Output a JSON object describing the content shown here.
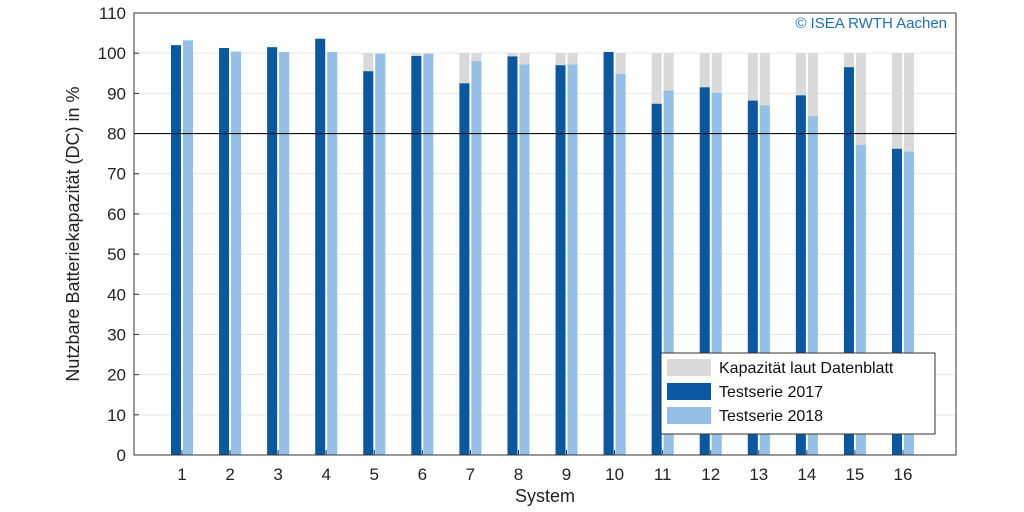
{
  "chart_data": {
    "type": "bar",
    "xlabel": "System",
    "ylabel": "Nutzbare Batteriekapazität (DC) in %",
    "ylim": [
      0,
      110
    ],
    "yticks": [
      0,
      10,
      20,
      30,
      40,
      50,
      60,
      70,
      80,
      90,
      100,
      110
    ],
    "categories": [
      "1",
      "2",
      "3",
      "4",
      "5",
      "6",
      "7",
      "8",
      "9",
      "10",
      "11",
      "12",
      "13",
      "14",
      "15",
      "16"
    ],
    "reference_line": 80,
    "grid": true,
    "legend_position": "bottom-right",
    "series": [
      {
        "name": "Kapazität laut Datenblatt",
        "color": "#d9d9d9",
        "values": [
          100,
          100,
          100,
          100,
          100,
          100,
          100,
          100,
          100,
          100,
          100,
          100,
          100,
          100,
          100,
          100
        ]
      },
      {
        "name": "Testserie 2017",
        "color": "#0a57a2",
        "values": [
          102,
          101.3,
          101.5,
          103.6,
          95.5,
          99.3,
          92.5,
          99.2,
          97,
          100.3,
          87.4,
          91.5,
          88.2,
          89.5,
          96.5,
          76.2
        ]
      },
      {
        "name": "Testserie 2018",
        "color": "#94c0e8",
        "values": [
          103.2,
          100.4,
          100.3,
          100.3,
          99.8,
          99.8,
          98,
          97.2,
          97.2,
          94.8,
          90.7,
          90.1,
          87,
          84.3,
          77.2,
          75.5
        ]
      }
    ]
  },
  "copyright": {
    "text": "© ISEA RWTH Aachen",
    "color": "#1d6fb5"
  }
}
